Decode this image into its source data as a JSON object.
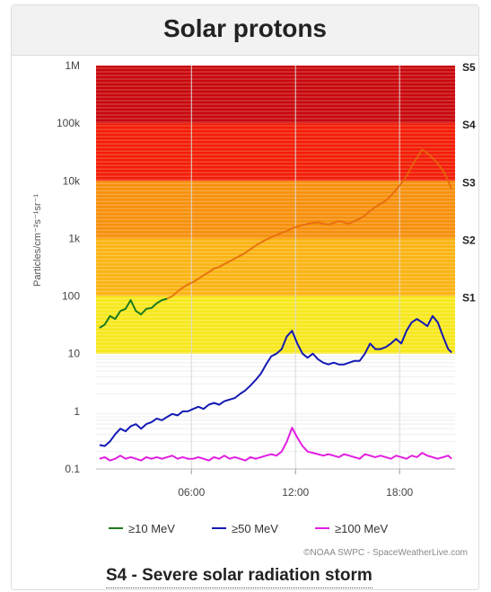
{
  "title": "Solar protons",
  "status": "S4 - Severe solar radiation storm",
  "credit": "©NOAA SWPC - SpaceWeatherLive.com",
  "chart_data": {
    "type": "line",
    "ylabel": "Particles/cm⁻²s⁻¹sr⁻¹",
    "yscale": "log",
    "ylim": [
      0.1,
      1000000
    ],
    "xlim": [
      0.5,
      21.2
    ],
    "x_ticks": [
      {
        "value": 6,
        "label": "06:00"
      },
      {
        "value": 12,
        "label": "12:00"
      },
      {
        "value": 18,
        "label": "18:00"
      }
    ],
    "y_ticks": [
      {
        "value": 0.1,
        "label": "0.1"
      },
      {
        "value": 1,
        "label": "1"
      },
      {
        "value": 10,
        "label": "10"
      },
      {
        "value": 100,
        "label": "100"
      },
      {
        "value": 1000,
        "label": "1k"
      },
      {
        "value": 10000,
        "label": "10k"
      },
      {
        "value": 100000,
        "label": "100k"
      },
      {
        "value": 1000000,
        "label": "1M"
      }
    ],
    "storm_levels": [
      {
        "label": "S1",
        "from": 10,
        "to": 100,
        "color": "#f7e81e"
      },
      {
        "label": "S2",
        "from": 100,
        "to": 1000,
        "color": "#fbb414"
      },
      {
        "label": "S3",
        "from": 1000,
        "to": 10000,
        "color": "#f7900c"
      },
      {
        "label": "S4",
        "from": 10000,
        "to": 100000,
        "color": "#f31c05"
      },
      {
        "label": "S5",
        "from": 100000,
        "to": 1000000,
        "color": "#c8070b"
      }
    ],
    "series": [
      {
        "name": "≥10 MeV",
        "color": "#1e7a1e",
        "fade_color": "#e4690a",
        "fade_after": 4.8,
        "x": [
          0.7,
          1.0,
          1.3,
          1.6,
          1.9,
          2.2,
          2.5,
          2.8,
          3.1,
          3.4,
          3.7,
          4.0,
          4.3,
          4.6,
          4.9,
          5.2,
          5.5,
          5.8,
          6.1,
          6.4,
          6.7,
          7.0,
          7.3,
          7.6,
          7.9,
          8.2,
          8.5,
          8.8,
          9.1,
          9.4,
          9.7,
          10.0,
          10.3,
          10.6,
          10.9,
          11.2,
          11.5,
          11.8,
          12.1,
          12.4,
          12.7,
          13.0,
          13.3,
          13.6,
          13.9,
          14.2,
          14.5,
          14.8,
          15.1,
          15.4,
          15.7,
          16.0,
          16.3,
          16.6,
          16.9,
          17.2,
          17.5,
          17.8,
          18.1,
          18.4,
          18.7,
          19.0,
          19.3,
          19.6,
          19.9,
          20.2,
          20.5,
          20.8,
          21.0
        ],
        "values": [
          28,
          32,
          45,
          40,
          55,
          60,
          85,
          55,
          48,
          60,
          62,
          75,
          85,
          90,
          100,
          120,
          140,
          160,
          175,
          200,
          230,
          260,
          300,
          320,
          360,
          400,
          450,
          500,
          560,
          650,
          750,
          850,
          950,
          1050,
          1150,
          1250,
          1350,
          1500,
          1600,
          1700,
          1800,
          1850,
          1900,
          1800,
          1750,
          1850,
          2000,
          1900,
          1800,
          2000,
          2200,
          2500,
          3000,
          3500,
          4000,
          4500,
          5500,
          7000,
          9000,
          12000,
          18000,
          25000,
          35000,
          30000,
          25000,
          20000,
          15000,
          10000,
          7000
        ]
      },
      {
        "name": "≥50 MeV",
        "color": "#141ab4",
        "x": [
          0.7,
          1.0,
          1.3,
          1.6,
          1.9,
          2.2,
          2.5,
          2.8,
          3.1,
          3.4,
          3.7,
          4.0,
          4.3,
          4.6,
          4.9,
          5.2,
          5.5,
          5.8,
          6.1,
          6.4,
          6.7,
          7.0,
          7.3,
          7.6,
          7.9,
          8.2,
          8.5,
          8.8,
          9.1,
          9.4,
          9.7,
          10.0,
          10.3,
          10.6,
          10.9,
          11.2,
          11.5,
          11.8,
          12.1,
          12.4,
          12.7,
          13.0,
          13.3,
          13.6,
          13.9,
          14.2,
          14.5,
          14.8,
          15.1,
          15.4,
          15.7,
          16.0,
          16.3,
          16.6,
          16.9,
          17.2,
          17.5,
          17.8,
          18.1,
          18.4,
          18.7,
          19.0,
          19.3,
          19.6,
          19.9,
          20.2,
          20.5,
          20.8,
          21.0
        ],
        "values": [
          0.26,
          0.25,
          0.3,
          0.4,
          0.5,
          0.45,
          0.55,
          0.6,
          0.5,
          0.6,
          0.65,
          0.75,
          0.7,
          0.8,
          0.9,
          0.85,
          1.0,
          1.0,
          1.1,
          1.2,
          1.1,
          1.3,
          1.4,
          1.3,
          1.5,
          1.6,
          1.7,
          2.0,
          2.3,
          2.8,
          3.5,
          4.5,
          6.5,
          9.0,
          10,
          12,
          20,
          25,
          15,
          10,
          8.5,
          10,
          8,
          7,
          6.5,
          7,
          6.5,
          6.5,
          7,
          7.5,
          7.5,
          10,
          15,
          12,
          12,
          13,
          15,
          18,
          15,
          25,
          35,
          40,
          35,
          30,
          45,
          35,
          20,
          12,
          10.5
        ]
      },
      {
        "name": "≥100 MeV",
        "color": "#e21de2",
        "x": [
          0.7,
          1.0,
          1.3,
          1.6,
          1.9,
          2.2,
          2.5,
          2.8,
          3.1,
          3.4,
          3.7,
          4.0,
          4.3,
          4.6,
          4.9,
          5.2,
          5.5,
          5.8,
          6.1,
          6.4,
          6.7,
          7.0,
          7.3,
          7.6,
          7.9,
          8.2,
          8.5,
          8.8,
          9.1,
          9.4,
          9.7,
          10.0,
          10.3,
          10.6,
          10.9,
          11.2,
          11.5,
          11.8,
          12.1,
          12.4,
          12.7,
          13.0,
          13.3,
          13.6,
          13.9,
          14.2,
          14.5,
          14.8,
          15.1,
          15.4,
          15.7,
          16.0,
          16.3,
          16.6,
          16.9,
          17.2,
          17.5,
          17.8,
          18.1,
          18.4,
          18.7,
          19.0,
          19.3,
          19.6,
          19.9,
          20.2,
          20.5,
          20.8,
          21.0
        ],
        "values": [
          0.15,
          0.16,
          0.14,
          0.15,
          0.17,
          0.15,
          0.16,
          0.15,
          0.14,
          0.16,
          0.15,
          0.16,
          0.15,
          0.16,
          0.17,
          0.15,
          0.16,
          0.15,
          0.15,
          0.16,
          0.15,
          0.14,
          0.16,
          0.15,
          0.17,
          0.15,
          0.16,
          0.15,
          0.14,
          0.16,
          0.15,
          0.16,
          0.17,
          0.18,
          0.17,
          0.2,
          0.3,
          0.52,
          0.35,
          0.25,
          0.2,
          0.19,
          0.18,
          0.17,
          0.18,
          0.17,
          0.16,
          0.18,
          0.17,
          0.16,
          0.15,
          0.18,
          0.17,
          0.16,
          0.17,
          0.16,
          0.15,
          0.17,
          0.16,
          0.15,
          0.17,
          0.16,
          0.19,
          0.17,
          0.16,
          0.15,
          0.16,
          0.17,
          0.15
        ]
      }
    ]
  }
}
